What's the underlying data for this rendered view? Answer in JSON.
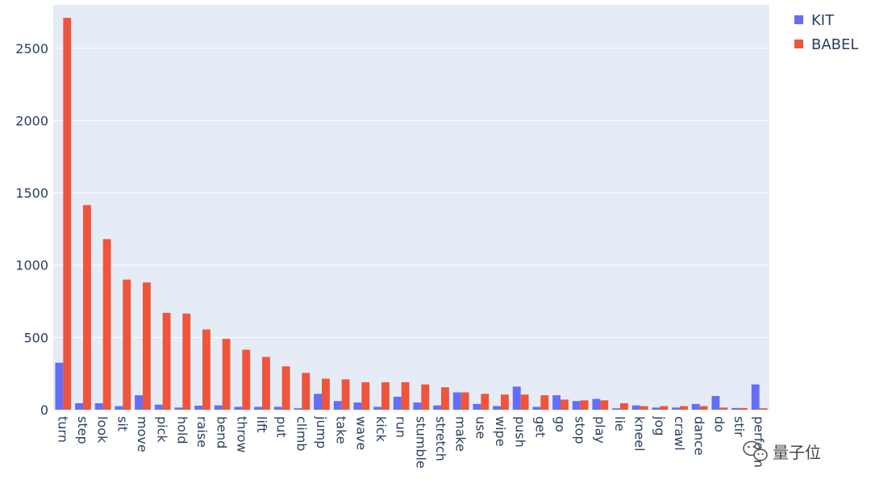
{
  "chart_data": {
    "type": "bar",
    "categories": [
      "turn",
      "step",
      "look",
      "sit",
      "move",
      "pick",
      "hold",
      "raise",
      "bend",
      "throw",
      "lift",
      "put",
      "climb",
      "jump",
      "take",
      "wave",
      "kick",
      "run",
      "stumble",
      "stretch",
      "make",
      "use",
      "wipe",
      "push",
      "get",
      "go",
      "stop",
      "play",
      "lie",
      "kneel",
      "jog",
      "crawl",
      "dance",
      "do",
      "stir",
      "perform"
    ],
    "series": [
      {
        "name": "KIT",
        "color": "#636efa",
        "values": [
          325,
          45,
          45,
          25,
          100,
          35,
          15,
          28,
          30,
          20,
          20,
          20,
          10,
          110,
          60,
          50,
          20,
          90,
          50,
          30,
          120,
          40,
          25,
          160,
          20,
          100,
          60,
          75,
          10,
          30,
          15,
          15,
          40,
          95,
          12,
          175
        ]
      },
      {
        "name": "BABEL",
        "color": "#ef553b",
        "values": [
          2710,
          1415,
          1180,
          900,
          880,
          670,
          665,
          555,
          490,
          415,
          365,
          300,
          255,
          215,
          210,
          190,
          190,
          190,
          175,
          155,
          120,
          110,
          105,
          105,
          100,
          70,
          65,
          65,
          45,
          25,
          25,
          25,
          25,
          15,
          12,
          10
        ]
      }
    ],
    "title": "",
    "xlabel": "",
    "ylabel": "",
    "ylim": [
      0,
      2800
    ],
    "yticks": [
      0,
      500,
      1000,
      1500,
      2000,
      2500
    ],
    "grid": true,
    "legend_position": "top-right",
    "plot_background": "#e5ecf6"
  },
  "watermark": {
    "text": "量子位",
    "icon": "wechat-icon"
  }
}
